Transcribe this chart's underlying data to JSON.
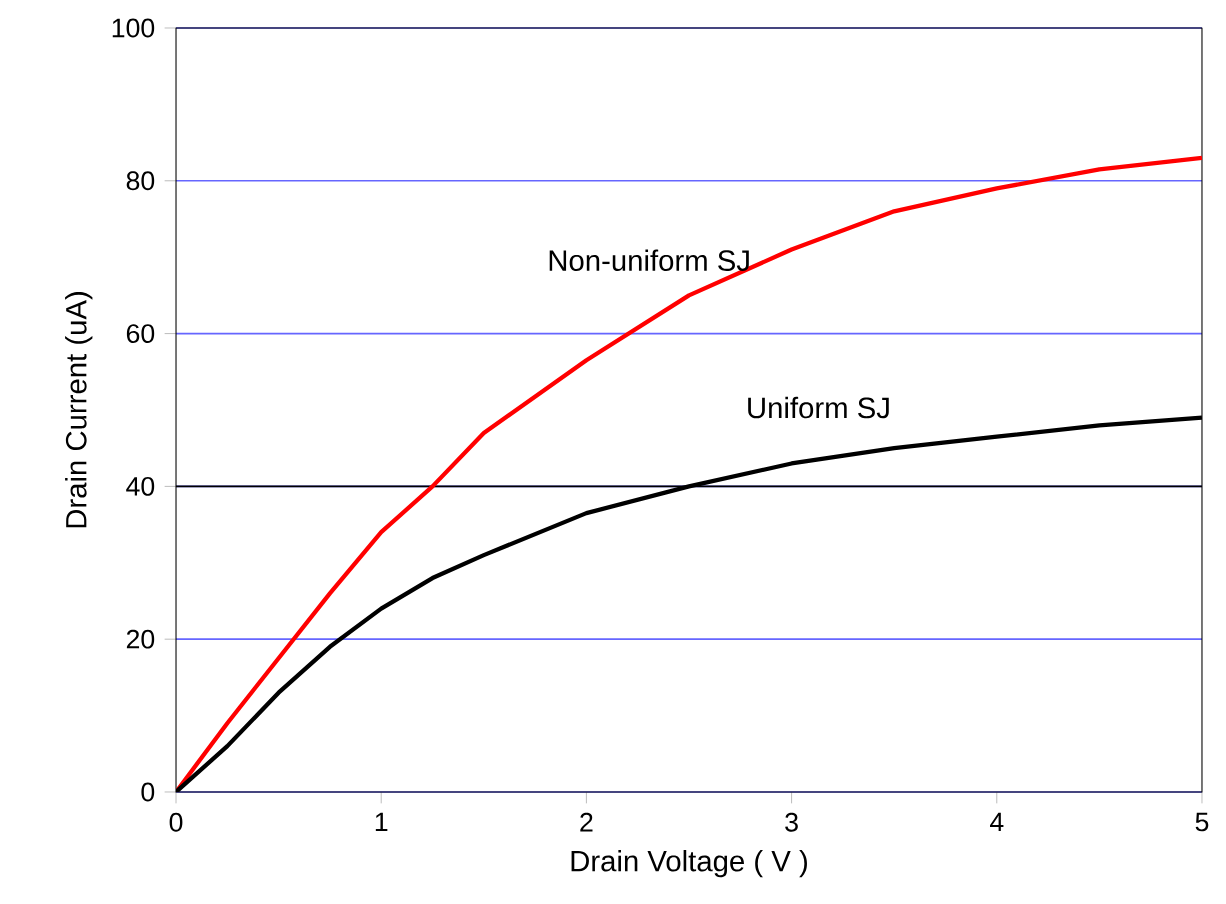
{
  "chart_data": {
    "type": "line",
    "xlabel": "Drain Voltage ( V )",
    "ylabel": "Drain Current (uA)",
    "xlim": [
      0,
      5
    ],
    "ylim": [
      0,
      100
    ],
    "xticks": [
      0,
      1,
      2,
      3,
      4,
      5
    ],
    "yticks": [
      0,
      20,
      40,
      60,
      80,
      100
    ],
    "grid": "y",
    "marker": "none",
    "line_style": "solid",
    "ref_lines": [
      {
        "axis": "y",
        "value": 40,
        "color": "#000000"
      }
    ],
    "series": [
      {
        "name": "Non-uniform SJ",
        "color": "#ff0000",
        "x": [
          0,
          0.25,
          0.5,
          0.75,
          1,
          1.25,
          1.5,
          2,
          2.5,
          3,
          3.5,
          4,
          4.5,
          5
        ],
        "values": [
          0,
          9,
          17.5,
          26,
          34,
          40,
          47,
          56.5,
          65,
          71,
          76,
          79,
          81.5,
          83
        ]
      },
      {
        "name": "Uniform SJ",
        "color": "#000000",
        "x": [
          0,
          0.25,
          0.5,
          0.75,
          1,
          1.25,
          1.5,
          2,
          2.5,
          3,
          3.5,
          4,
          4.5,
          5
        ],
        "values": [
          0,
          6,
          13,
          19,
          24,
          28,
          31,
          36.5,
          40,
          43,
          45,
          46.5,
          48,
          49
        ]
      }
    ]
  }
}
